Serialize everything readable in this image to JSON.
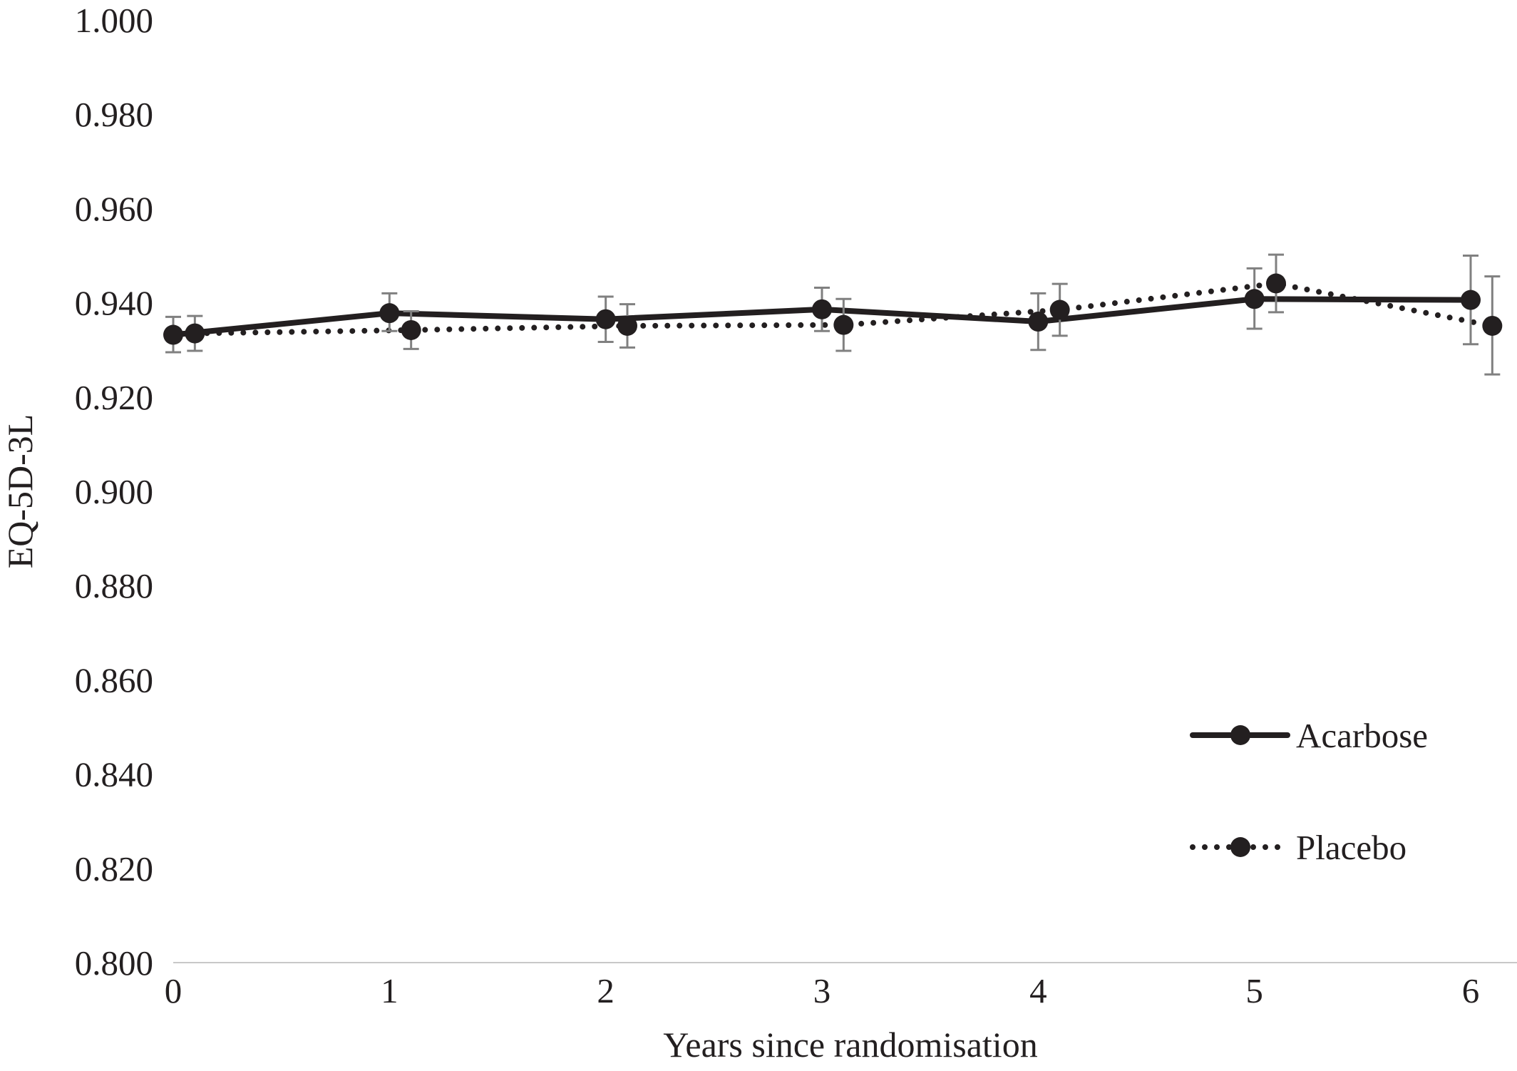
{
  "chart_data": {
    "type": "line",
    "title": "",
    "xlabel": "Years since randomisation",
    "ylabel": "EQ-5D-3L",
    "xlim": [
      0,
      6.1
    ],
    "ylim": [
      0.8,
      1.0
    ],
    "x_ticks": [
      0,
      1,
      2,
      3,
      4,
      5,
      6
    ],
    "y_ticks": [
      0.8,
      0.82,
      0.84,
      0.86,
      0.88,
      0.9,
      0.92,
      0.94,
      0.96,
      0.98,
      1.0
    ],
    "y_tick_labels": [
      "0.800",
      "0.820",
      "0.840",
      "0.860",
      "0.880",
      "0.900",
      "0.920",
      "0.940",
      "0.960",
      "0.980",
      "1.000"
    ],
    "x_tick_labels": [
      "0",
      "1",
      "2",
      "3",
      "4",
      "5",
      "6"
    ],
    "grid": false,
    "legend_position": "bottom-right",
    "series": [
      {
        "name": "Acarbose",
        "style": "solid",
        "color": "#231f20",
        "points": [
          {
            "x": 0.0,
            "y": 0.9332,
            "lower": 0.9295,
            "upper": 0.937
          },
          {
            "x": 1.0,
            "y": 0.9378,
            "lower": 0.934,
            "upper": 0.942
          },
          {
            "x": 2.0,
            "y": 0.9365,
            "lower": 0.9317,
            "upper": 0.9413
          },
          {
            "x": 3.0,
            "y": 0.9386,
            "lower": 0.934,
            "upper": 0.9432
          },
          {
            "x": 4.0,
            "y": 0.936,
            "lower": 0.93,
            "upper": 0.942
          },
          {
            "x": 5.0,
            "y": 0.9408,
            "lower": 0.9345,
            "upper": 0.9473
          },
          {
            "x": 6.0,
            "y": 0.9406,
            "lower": 0.9312,
            "upper": 0.95
          }
        ]
      },
      {
        "name": "Placebo",
        "style": "dotted",
        "color": "#231f20",
        "points": [
          {
            "x": 0.1,
            "y": 0.9335,
            "lower": 0.9298,
            "upper": 0.9372
          },
          {
            "x": 1.1,
            "y": 0.9342,
            "lower": 0.9302,
            "upper": 0.9382
          },
          {
            "x": 2.1,
            "y": 0.9351,
            "lower": 0.9305,
            "upper": 0.9397
          },
          {
            "x": 3.1,
            "y": 0.9353,
            "lower": 0.9298,
            "upper": 0.9408
          },
          {
            "x": 4.1,
            "y": 0.9385,
            "lower": 0.933,
            "upper": 0.944
          },
          {
            "x": 5.1,
            "y": 0.9441,
            "lower": 0.938,
            "upper": 0.9502
          },
          {
            "x": 6.1,
            "y": 0.9351,
            "lower": 0.9248,
            "upper": 0.9456
          }
        ]
      }
    ],
    "error_bar_color": "#808080",
    "axis_color": "#c8c8c8"
  }
}
